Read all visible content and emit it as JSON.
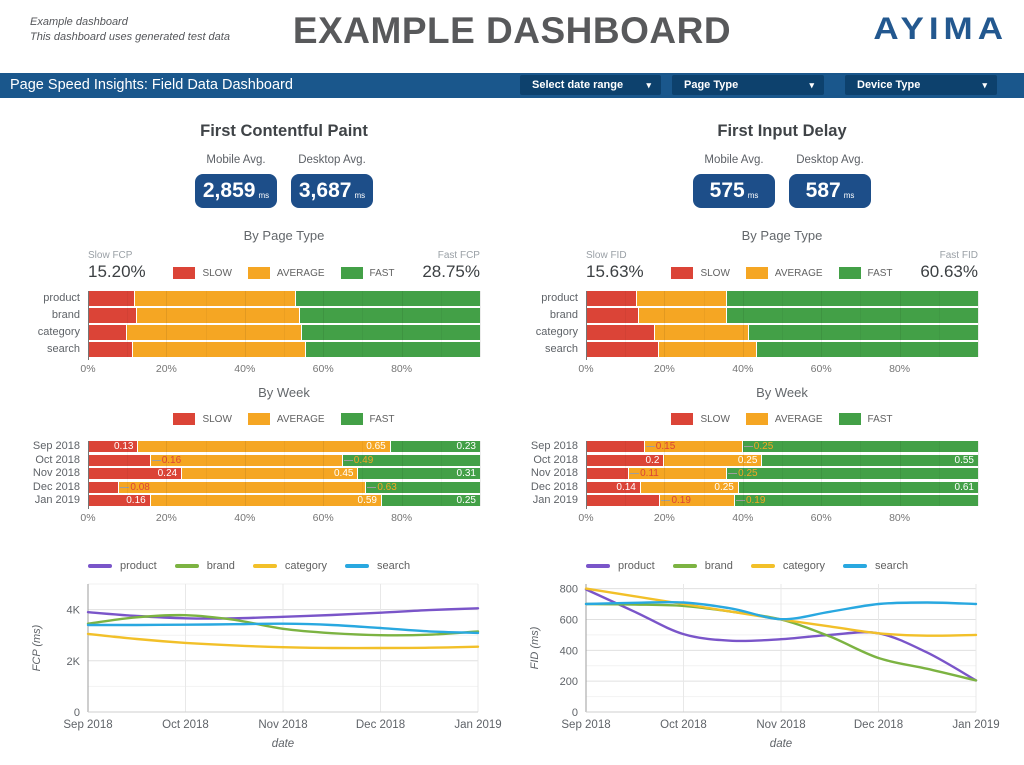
{
  "header": {
    "note_line1": "Example dashboard",
    "note_line2": "This dashboard uses generated test data",
    "title": "EXAMPLE DASHBOARD",
    "logo": "AYIMA"
  },
  "toolbar": {
    "title": "Page Speed Insights: Field Data Dashboard",
    "filters": [
      {
        "label": "Select date range"
      },
      {
        "label": "Page Type"
      },
      {
        "label": "Device Type"
      }
    ]
  },
  "colors": {
    "toolbar_bg": "#1A578C",
    "filter_bg": "#0D416D",
    "stat_box_bg": "#1D4E89",
    "slow": "#DB4437",
    "average": "#F5A623",
    "fast": "#43A047",
    "product": "#7A55C9",
    "brand": "#7CB342",
    "category": "#F2C029",
    "search": "#29A8E0"
  },
  "legend": [
    "SLOW",
    "AVERAGE",
    "FAST"
  ],
  "panels": [
    {
      "title": "First Contentful Paint",
      "mobile_label": "Mobile Avg.",
      "mobile_value": "2,859",
      "mobile_unit": "ms",
      "desktop_label": "Desktop Avg.",
      "desktop_value": "3,687",
      "desktop_unit": "ms",
      "slow_stat_label": "Slow FCP",
      "slow_stat_value": "15.20%",
      "fast_stat_label": "Fast FCP",
      "fast_stat_value": "28.75%"
    },
    {
      "title": "First Input Delay",
      "mobile_label": "Mobile Avg.",
      "mobile_value": "575",
      "mobile_unit": "ms",
      "desktop_label": "Desktop Avg.",
      "desktop_value": "587",
      "desktop_unit": "ms",
      "slow_stat_label": "Slow FID",
      "slow_stat_value": "15.63%",
      "fast_stat_label": "Fast FID",
      "fast_stat_value": "60.63%"
    }
  ],
  "chart_data": [
    {
      "id": "fcp_by_page_type",
      "type": "bar",
      "stacked": true,
      "title": "By Page Type",
      "ticks": [
        "0%",
        "20%",
        "40%",
        "60%",
        "80%"
      ],
      "categories": [
        "product",
        "brand",
        "category",
        "search"
      ],
      "series": [
        {
          "name": "SLOW",
          "values": [
            0.12,
            0.125,
            0.1,
            0.115
          ]
        },
        {
          "name": "AVERAGE",
          "values": [
            0.41,
            0.415,
            0.445,
            0.44
          ]
        },
        {
          "name": "FAST",
          "values": [
            0.47,
            0.46,
            0.455,
            0.445
          ]
        }
      ]
    },
    {
      "id": "fcp_by_week",
      "type": "bar",
      "stacked": true,
      "title": "By Week",
      "ticks": [
        "0%",
        "20%",
        "40%",
        "60%",
        "80%"
      ],
      "categories": [
        "Sep 2018",
        "Oct 2018",
        "Nov 2018",
        "Dec 2018",
        "Jan 2019"
      ],
      "series": [
        {
          "name": "SLOW",
          "values": [
            0.13,
            0.16,
            0.24,
            0.08,
            0.16
          ]
        },
        {
          "name": "AVERAGE",
          "values": [
            0.65,
            0.49,
            0.45,
            0.63,
            0.59
          ]
        },
        {
          "name": "FAST",
          "values": [
            0.23,
            0.35,
            0.31,
            0.29,
            0.25
          ]
        }
      ],
      "data_labels": [
        [
          {
            "text": "0.13",
            "pos": "in"
          },
          {
            "text": "0.65",
            "pos": "in"
          },
          {
            "text": "0.23",
            "pos": "in"
          }
        ],
        [
          {
            "text": "0.16",
            "pos": "out"
          },
          {
            "text": "0.49",
            "pos": "out"
          },
          null
        ],
        [
          {
            "text": "0.24",
            "pos": "in"
          },
          {
            "text": "0.45",
            "pos": "in"
          },
          {
            "text": "0.31",
            "pos": "in"
          }
        ],
        [
          {
            "text": "0.08",
            "pos": "out"
          },
          {
            "text": "0.63",
            "pos": "out"
          },
          null
        ],
        [
          {
            "text": "0.16",
            "pos": "in"
          },
          {
            "text": "0.59",
            "pos": "in"
          },
          {
            "text": "0.25",
            "pos": "in"
          }
        ]
      ]
    },
    {
      "id": "fcp_trend",
      "type": "line",
      "ylabel": "FCP (ms)",
      "xlabel": "date",
      "ymax": 5000,
      "yticks": [
        {
          "v": 0,
          "label": "0"
        },
        {
          "v": 2000,
          "label": "2K"
        },
        {
          "v": 4000,
          "label": "4K"
        }
      ],
      "minor": [
        1000,
        3000,
        5000
      ],
      "x_labels": [
        "Sep 2018",
        "Oct 2018",
        "Nov 2018",
        "Dec 2018",
        "Jan 2019"
      ],
      "series": [
        {
          "name": "product",
          "points": [
            3900,
            3750,
            3660,
            3660,
            3720,
            3790,
            3880,
            3980,
            4050
          ]
        },
        {
          "name": "brand",
          "points": [
            3450,
            3700,
            3780,
            3600,
            3250,
            3080,
            3000,
            3020,
            3150
          ]
        },
        {
          "name": "category",
          "points": [
            3050,
            2850,
            2700,
            2600,
            2530,
            2500,
            2500,
            2510,
            2550
          ]
        },
        {
          "name": "search",
          "points": [
            3400,
            3400,
            3410,
            3430,
            3450,
            3400,
            3280,
            3150,
            3090
          ]
        }
      ]
    },
    {
      "id": "fid_by_page_type",
      "type": "bar",
      "stacked": true,
      "title": "By Page Type",
      "ticks": [
        "0%",
        "20%",
        "40%",
        "60%",
        "80%"
      ],
      "categories": [
        "product",
        "brand",
        "category",
        "search"
      ],
      "series": [
        {
          "name": "SLOW",
          "values": [
            0.13,
            0.135,
            0.175,
            0.185
          ]
        },
        {
          "name": "AVERAGE",
          "values": [
            0.23,
            0.225,
            0.24,
            0.25
          ]
        },
        {
          "name": "FAST",
          "values": [
            0.64,
            0.64,
            0.585,
            0.565
          ]
        }
      ]
    },
    {
      "id": "fid_by_week",
      "type": "bar",
      "stacked": true,
      "title": "By Week",
      "ticks": [
        "0%",
        "20%",
        "40%",
        "60%",
        "80%"
      ],
      "categories": [
        "Sep 2018",
        "Oct 2018",
        "Nov 2018",
        "Dec 2018",
        "Jan 2019"
      ],
      "series": [
        {
          "name": "SLOW",
          "values": [
            0.15,
            0.2,
            0.11,
            0.14,
            0.19
          ]
        },
        {
          "name": "AVERAGE",
          "values": [
            0.25,
            0.25,
            0.25,
            0.25,
            0.19
          ]
        },
        {
          "name": "FAST",
          "values": [
            0.6,
            0.55,
            0.64,
            0.61,
            0.62
          ]
        }
      ],
      "data_labels": [
        [
          {
            "text": "0.15",
            "pos": "out"
          },
          {
            "text": "0.25",
            "pos": "out"
          },
          null
        ],
        [
          {
            "text": "0.2",
            "pos": "in"
          },
          {
            "text": "0.25",
            "pos": "in"
          },
          {
            "text": "0.55",
            "pos": "in"
          }
        ],
        [
          {
            "text": "0.11",
            "pos": "out"
          },
          {
            "text": "0.25",
            "pos": "out"
          },
          null
        ],
        [
          {
            "text": "0.14",
            "pos": "in"
          },
          {
            "text": "0.25",
            "pos": "in"
          },
          {
            "text": "0.61",
            "pos": "in"
          }
        ],
        [
          {
            "text": "0.19",
            "pos": "out"
          },
          {
            "text": "0.19",
            "pos": "out"
          },
          null
        ]
      ]
    },
    {
      "id": "fid_trend",
      "type": "line",
      "ylabel": "FID (ms)",
      "xlabel": "date",
      "ymax": 830,
      "yticks": [
        {
          "v": 0,
          "label": "0"
        },
        {
          "v": 200,
          "label": "200"
        },
        {
          "v": 400,
          "label": "400"
        },
        {
          "v": 600,
          "label": "600"
        },
        {
          "v": 800,
          "label": "800"
        }
      ],
      "minor": [
        100,
        300,
        500,
        700
      ],
      "x_labels": [
        "Sep 2018",
        "Oct 2018",
        "Nov 2018",
        "Dec 2018",
        "Jan 2019"
      ],
      "series": [
        {
          "name": "product",
          "points": [
            795,
            650,
            505,
            462,
            472,
            500,
            510,
            385,
            205
          ]
        },
        {
          "name": "brand",
          "points": [
            700,
            697,
            688,
            650,
            600,
            490,
            350,
            280,
            205
          ]
        },
        {
          "name": "category",
          "points": [
            800,
            750,
            700,
            650,
            600,
            555,
            510,
            495,
            500
          ]
        },
        {
          "name": "search",
          "points": [
            700,
            708,
            710,
            670,
            602,
            650,
            700,
            710,
            700
          ]
        }
      ]
    }
  ]
}
